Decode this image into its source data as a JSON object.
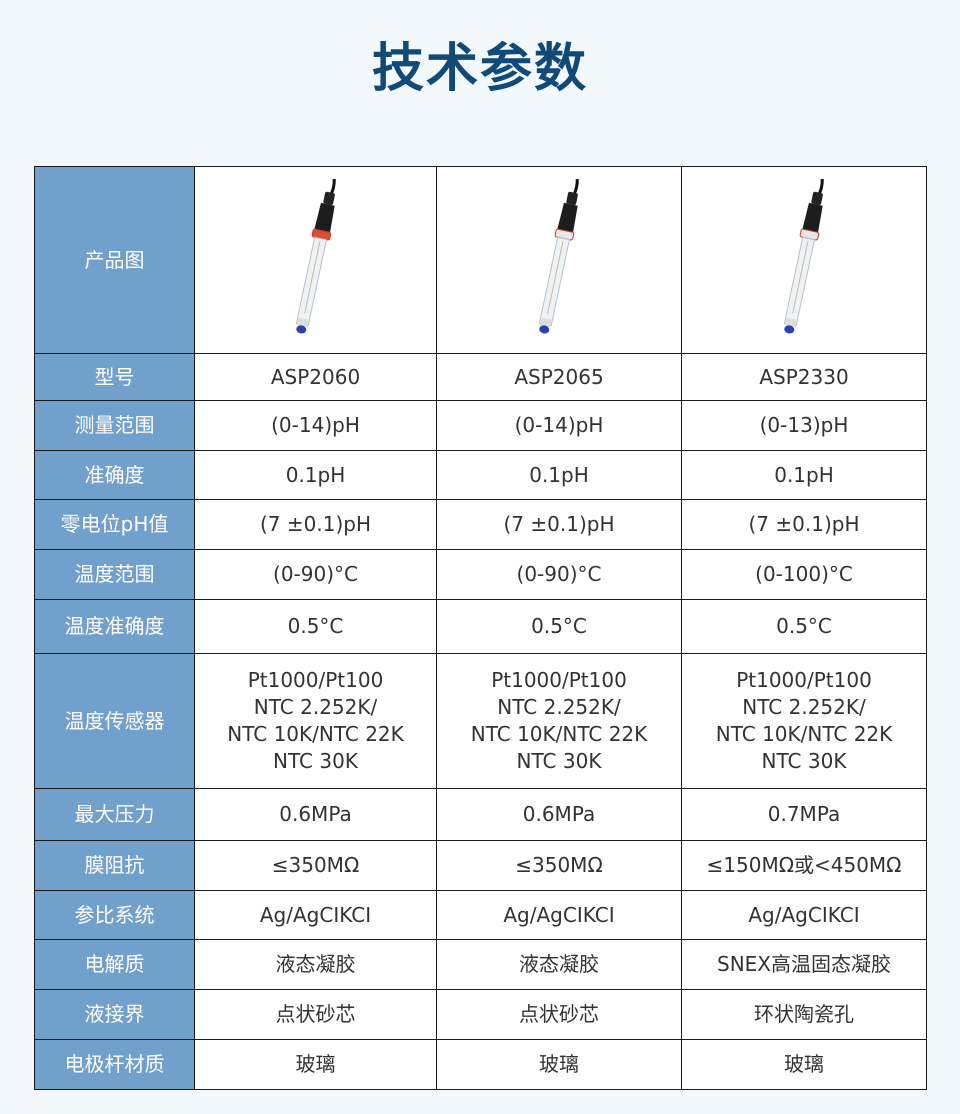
{
  "title": "技术参数",
  "header_color": "#72a0cc",
  "image_row_label": "产品图",
  "products": [
    {
      "probe_icon": "ph-electrode-probe-icon",
      "ring_color": "#d9502a"
    },
    {
      "probe_icon": "ph-electrode-probe-icon",
      "ring_color": "#e8e8e8"
    },
    {
      "probe_icon": "ph-electrode-probe-icon",
      "ring_color": "#e8e8e8"
    }
  ],
  "rows": [
    {
      "label": "型号",
      "values": [
        "ASP2060",
        "ASP2065",
        "ASP2330"
      ]
    },
    {
      "label": "测量范围",
      "values": [
        "(0-14)pH",
        "(0-14)pH",
        "(0-13)pH"
      ]
    },
    {
      "label": "准确度",
      "values": [
        "0.1pH",
        "0.1pH",
        "0.1pH"
      ]
    },
    {
      "label": "零电位pH值",
      "values": [
        "(7 ±0.1)pH",
        "(7 ±0.1)pH",
        "(7 ±0.1)pH"
      ]
    },
    {
      "label": "温度范围",
      "values": [
        "(0-90)°C",
        "(0-90)°C",
        "(0-100)°C"
      ]
    },
    {
      "label": "温度准确度",
      "values": [
        "0.5°C",
        "0.5°C",
        "0.5°C"
      ]
    },
    {
      "label": "温度传感器",
      "values": [
        "Pt1000/Pt100\nNTC 2.252K/\nNTC 10K/NTC 22K\nNTC 30K",
        "Pt1000/Pt100\nNTC 2.252K/\nNTC 10K/NTC 22K\nNTC 30K",
        "Pt1000/Pt100\nNTC 2.252K/\nNTC 10K/NTC 22K\nNTC 30K"
      ]
    },
    {
      "label": "最大压力",
      "values": [
        "0.6MPa",
        "0.6MPa",
        "0.7MPa"
      ]
    },
    {
      "label": "膜阻抗",
      "values": [
        "≤350MΩ",
        "≤350MΩ",
        "≤150MΩ或<450MΩ"
      ]
    },
    {
      "label": "参比系统",
      "values": [
        "Ag/AgCIKCI",
        "Ag/AgCIKCI",
        "Ag/AgCIKCI"
      ]
    },
    {
      "label": "电解质",
      "values": [
        "液态凝胶",
        "液态凝胶",
        "SNEX高温固态凝胶"
      ]
    },
    {
      "label": "液接界",
      "values": [
        "点状砂芯",
        "点状砂芯",
        "环状陶瓷孔"
      ]
    },
    {
      "label": "电极杆材质",
      "values": [
        "玻璃",
        "玻璃",
        "玻璃"
      ]
    }
  ]
}
